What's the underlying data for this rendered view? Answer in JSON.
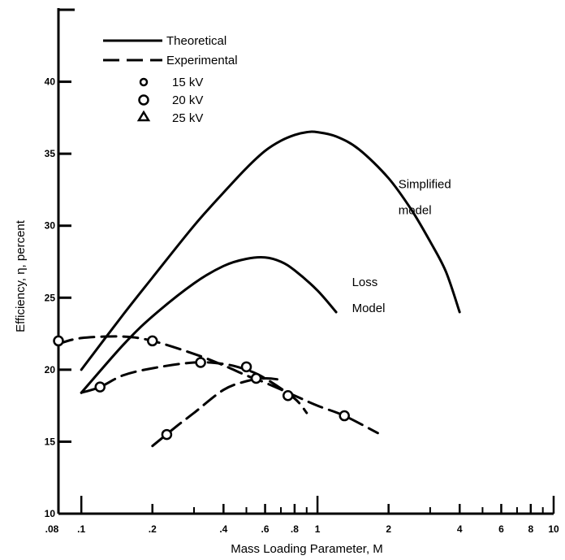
{
  "chart_data": {
    "type": "line",
    "title": "",
    "xlabel": "Mass Loading Parameter, M",
    "ylabel": "Efficiency, η, percent",
    "xscale": "log",
    "xlim": [
      0.08,
      10
    ],
    "ylim": [
      10,
      45
    ],
    "x_tick_labels": [
      ".08",
      ".1",
      ".2",
      ".4",
      ".6",
      ".8",
      "1",
      "2",
      "4",
      "6",
      "8",
      "10"
    ],
    "x_tick_values": [
      0.08,
      0.1,
      0.2,
      0.4,
      0.6,
      0.8,
      1,
      2,
      4,
      6,
      8,
      10
    ],
    "y_tick_labels": [
      "10",
      "15",
      "20",
      "25",
      "30",
      "35",
      "40"
    ],
    "y_tick_values": [
      10,
      15,
      20,
      25,
      30,
      35,
      40
    ],
    "grid": false,
    "legend_position": "top-left",
    "legend": [
      {
        "label": "Theoretical",
        "style": "solid"
      },
      {
        "label": "Experimental",
        "style": "dashed"
      },
      {
        "label": "15 kV",
        "marker": "circle-small"
      },
      {
        "label": "20 kV",
        "marker": "circle"
      },
      {
        "label": "25 kV",
        "marker": "triangle"
      }
    ],
    "annotations": [
      {
        "text": "Simplified",
        "x": 2.2,
        "y": 32.6
      },
      {
        "text": "model",
        "x": 2.2,
        "y": 30.8
      },
      {
        "text": "Loss",
        "x": 1.4,
        "y": 25.8
      },
      {
        "text": "Model",
        "x": 1.4,
        "y": 24.0
      }
    ],
    "series": [
      {
        "style": "solid",
        "x": [
          0.1,
          0.15,
          0.2,
          0.3,
          0.4,
          0.5,
          0.6,
          0.7,
          0.8,
          0.9,
          1.0,
          1.2,
          1.5,
          2.0,
          2.5,
          3.0,
          3.5,
          4.0
        ],
        "y": [
          20.0,
          23.8,
          26.4,
          30.0,
          32.3,
          34.0,
          35.2,
          35.9,
          36.3,
          36.5,
          36.5,
          36.2,
          35.3,
          33.3,
          31.1,
          28.9,
          26.8,
          24.0
        ]
      },
      {
        "style": "solid",
        "x": [
          0.1,
          0.15,
          0.2,
          0.3,
          0.4,
          0.5,
          0.6,
          0.7,
          0.8,
          1.0,
          1.2
        ],
        "y": [
          18.4,
          21.7,
          23.7,
          26.0,
          27.2,
          27.7,
          27.8,
          27.5,
          26.9,
          25.5,
          24.0
        ]
      },
      {
        "style": "dashed",
        "x": [
          0.08,
          0.1,
          0.15,
          0.2,
          0.3,
          0.4,
          0.5,
          0.6,
          0.8,
          1.0,
          1.3,
          1.8
        ],
        "y": [
          21.8,
          22.2,
          22.3,
          22.0,
          21.1,
          20.3,
          19.6,
          19.1,
          18.2,
          17.5,
          16.8,
          15.6
        ]
      },
      {
        "style": "dashed",
        "x": [
          0.1,
          0.12,
          0.15,
          0.2,
          0.3,
          0.4,
          0.5,
          0.6,
          0.8,
          0.9
        ],
        "y": [
          18.4,
          18.8,
          19.6,
          20.1,
          20.5,
          20.4,
          20.0,
          19.4,
          18.0,
          17.0
        ]
      },
      {
        "style": "dashed",
        "x": [
          0.2,
          0.25,
          0.3,
          0.4,
          0.5,
          0.6,
          0.7
        ],
        "y": [
          14.7,
          16.0,
          17.0,
          18.6,
          19.2,
          19.4,
          19.3
        ]
      }
    ],
    "points": [
      {
        "x": 0.08,
        "y": 22.0,
        "marker": "circle"
      },
      {
        "x": 0.12,
        "y": 18.8,
        "marker": "circle"
      },
      {
        "x": 0.2,
        "y": 22.0,
        "marker": "circle"
      },
      {
        "x": 0.23,
        "y": 15.5,
        "marker": "circle"
      },
      {
        "x": 0.32,
        "y": 20.5,
        "marker": "circle"
      },
      {
        "x": 0.5,
        "y": 20.2,
        "marker": "circle"
      },
      {
        "x": 0.55,
        "y": 19.4,
        "marker": "circle"
      },
      {
        "x": 0.75,
        "y": 18.2,
        "marker": "circle"
      },
      {
        "x": 1.3,
        "y": 16.8,
        "marker": "circle"
      }
    ]
  }
}
